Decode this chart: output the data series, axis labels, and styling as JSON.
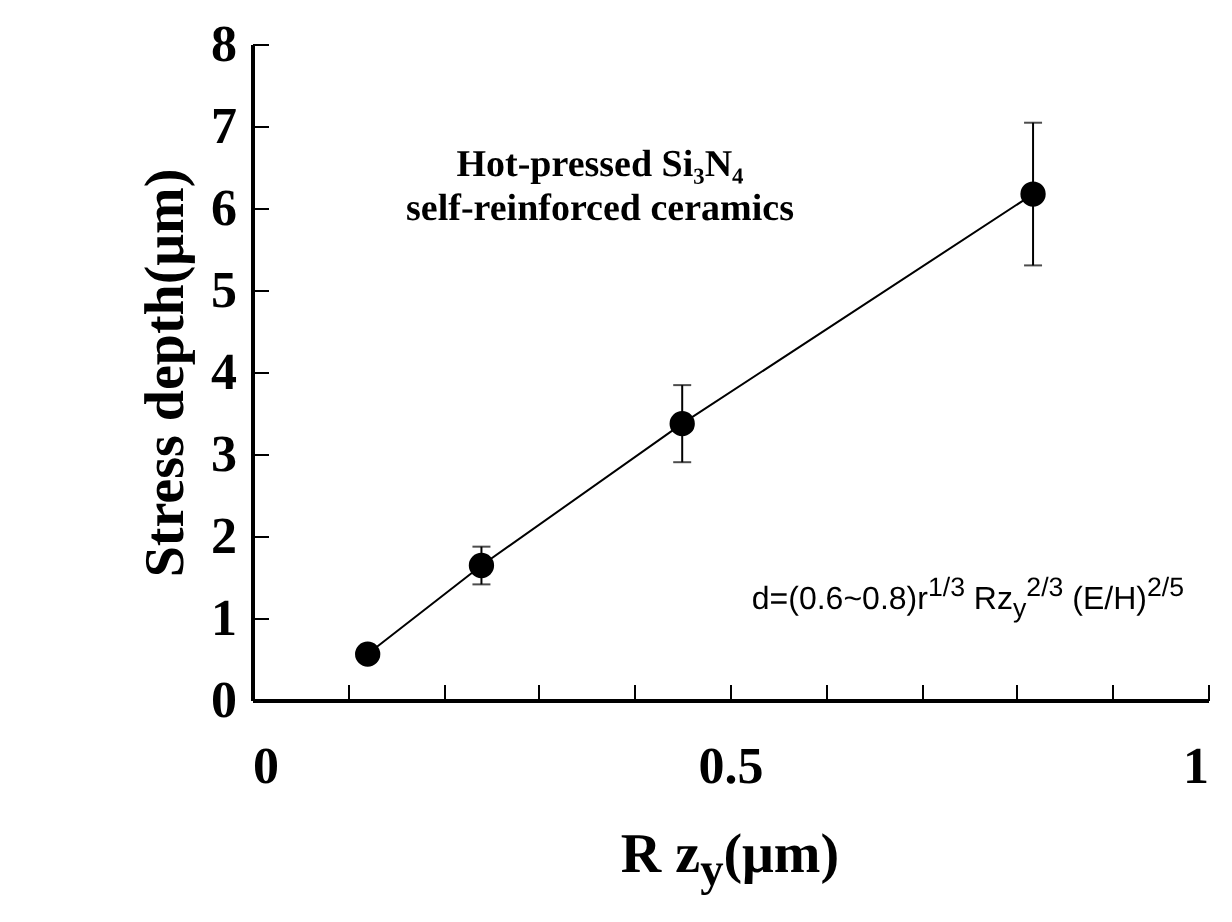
{
  "chart_data": {
    "type": "line",
    "xlabel": "R z$_{y}$(μm)",
    "ylabel": "Stress depth(μm)",
    "x": [
      0.121,
      0.24,
      0.45,
      0.817
    ],
    "series": [
      {
        "color": "#000000",
        "values": [
          0.56,
          1.64,
          3.37,
          6.17
        ],
        "errors": [
          null,
          0.23,
          0.47,
          0.87
        ]
      }
    ],
    "xlim": [
      0,
      1
    ],
    "xticks": [
      0,
      {
        "value": 0.1,
        "label": null
      },
      {
        "value": 0.2,
        "label": null
      },
      {
        "value": 0.3,
        "label": null
      },
      {
        "value": 0.4,
        "label": null
      },
      0.5,
      {
        "value": 0.6,
        "label": null
      },
      {
        "value": 0.7,
        "label": null
      },
      {
        "value": 0.8,
        "label": null
      },
      {
        "value": 0.9,
        "label": null
      },
      1
    ],
    "ylim": [
      0,
      8
    ],
    "yticks": [
      0,
      1,
      2,
      3,
      4,
      5,
      6,
      7,
      8
    ],
    "grid": false,
    "marker": "circle",
    "line_style": "solid",
    "annotations": [
      "Hot-pressed Si₃N₄\nself-reinforced ceramics",
      "d=(0.6~0.8)r$^{1/3}$ Rz$_{y}$$^{2/3}$ (E/H)$^{2/5}$"
    ]
  }
}
